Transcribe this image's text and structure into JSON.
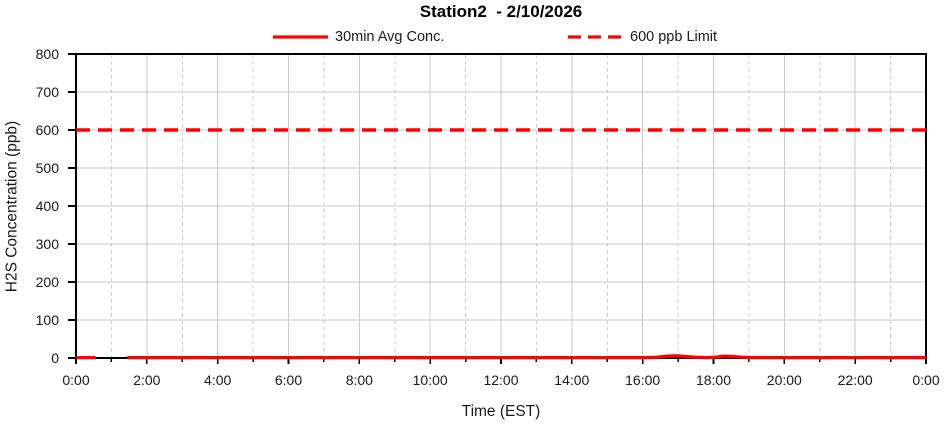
{
  "chart_data": {
    "type": "line",
    "title": "Station2  - 2/10/2026",
    "xlabel": "Time (EST)",
    "ylabel": "H2S Concentration (ppb)",
    "xlim": [
      0,
      24
    ],
    "ylim": [
      0,
      800
    ],
    "y_tick_step": 100,
    "y_tick_labels": [
      "0",
      "100",
      "200",
      "300",
      "400",
      "500",
      "600",
      "700",
      "800"
    ],
    "x_tick_hours": [
      0,
      2,
      4,
      6,
      8,
      10,
      12,
      14,
      16,
      18,
      20,
      22,
      24
    ],
    "x_tick_labels": [
      "0:00",
      "2:00",
      "4:00",
      "6:00",
      "8:00",
      "10:00",
      "12:00",
      "14:00",
      "16:00",
      "18:00",
      "20:00",
      "22:00",
      "0:00"
    ],
    "grid": {
      "horizontal": "solid every 100 ppb",
      "vertical_even_hours": "solid",
      "vertical_odd_hours": "dashed"
    },
    "legend_position": "top",
    "colors": {
      "series": "#FF0000",
      "limit": "#FF0000",
      "grid": "#C9C9C9",
      "grid_dashed": "#CFCFCF",
      "axis": "#000000"
    },
    "series": [
      {
        "name": "30min Avg Conc.",
        "style": "solid",
        "color": "#FF0000",
        "points_hour_ppb": [
          [
            0,
            1
          ],
          [
            0.55,
            1
          ],
          null,
          [
            1.45,
            1
          ],
          [
            16.1,
            1
          ],
          [
            16.4,
            2
          ],
          [
            16.7,
            5
          ],
          [
            16.95,
            6
          ],
          [
            17.2,
            4
          ],
          [
            17.5,
            2
          ],
          [
            17.8,
            1
          ],
          [
            18.05,
            2
          ],
          [
            18.3,
            5
          ],
          [
            18.55,
            4
          ],
          [
            18.8,
            2
          ],
          [
            19.1,
            1
          ],
          [
            24,
            1
          ]
        ],
        "data_gaps_hours": [
          [
            0.55,
            1.45
          ]
        ]
      },
      {
        "name": "600 ppb Limit",
        "style": "dashed",
        "color": "#FF0000",
        "value": 600,
        "value_unit": "ppb"
      }
    ]
  }
}
